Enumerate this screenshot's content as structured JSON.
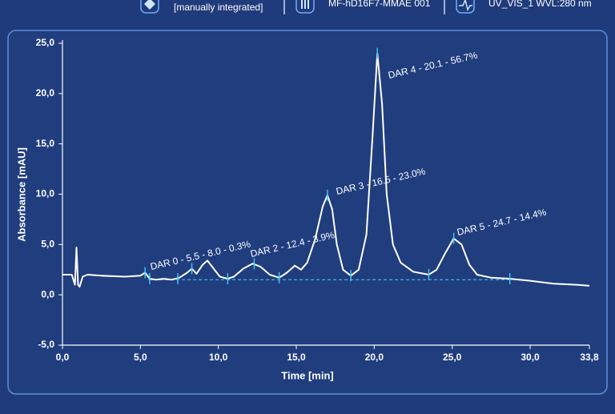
{
  "header": {
    "status": "[manually integrated]",
    "sample": "MF-hD16F7-MMAE 001",
    "channel": "UV_VIS_1  WVL:280 nm"
  },
  "chart_data": {
    "type": "line",
    "xlabel": "Time [min]",
    "ylabel": "Absorbance [mAU]",
    "xlim": [
      0,
      33.8
    ],
    "ylim": [
      -5,
      25
    ],
    "xticks": [
      {
        "value": 0,
        "label": "0,0"
      },
      {
        "value": 5,
        "label": "5,0"
      },
      {
        "value": 10,
        "label": "10,0"
      },
      {
        "value": 15,
        "label": "15,0"
      },
      {
        "value": 20,
        "label": "20,0"
      },
      {
        "value": 25,
        "label": "25,0"
      },
      {
        "value": 30,
        "label": "30,0"
      },
      {
        "value": 33.8,
        "label": "33,8"
      }
    ],
    "yticks": [
      {
        "value": -5,
        "label": "-5,0"
      },
      {
        "value": 0,
        "label": "0,0"
      },
      {
        "value": 5,
        "label": "5,0"
      },
      {
        "value": 10,
        "label": "10,0"
      },
      {
        "value": 15,
        "label": "15,0"
      },
      {
        "value": 20,
        "label": "20,0"
      },
      {
        "value": 25,
        "label": "25,0"
      }
    ],
    "series": [
      {
        "color": "#ffffff",
        "x": [
          0,
          0.6,
          0.8,
          0.9,
          1.0,
          1.1,
          1.3,
          1.6,
          2.5,
          4.0,
          5.0,
          5.3,
          5.6,
          6.0,
          6.5,
          7.0,
          7.5,
          8.0,
          8.3,
          8.6,
          9.0,
          9.3,
          9.7,
          10.1,
          10.6,
          11.0,
          11.6,
          12.2,
          12.7,
          13.3,
          13.9,
          14.4,
          14.9,
          15.3,
          15.7,
          16.2,
          16.7,
          17.0,
          17.3,
          17.6,
          18.0,
          18.5,
          19.0,
          19.5,
          19.9,
          20.2,
          20.5,
          20.8,
          21.2,
          21.7,
          22.5,
          23.5,
          24.0,
          24.5,
          25.1,
          25.6,
          26.1,
          26.6,
          27.5,
          28.7,
          30.0,
          31.5,
          33.0,
          33.8
        ],
        "values": [
          2.0,
          2.0,
          1.0,
          4.7,
          1.0,
          0.8,
          1.8,
          2.0,
          1.9,
          1.8,
          1.9,
          2.2,
          1.6,
          1.5,
          1.6,
          1.5,
          1.7,
          2.2,
          2.6,
          2.1,
          3.0,
          3.4,
          2.6,
          1.8,
          1.6,
          1.8,
          2.6,
          3.1,
          2.8,
          2.0,
          1.7,
          2.2,
          2.9,
          2.5,
          3.2,
          5.5,
          8.8,
          9.9,
          8.5,
          5.0,
          2.5,
          1.9,
          2.5,
          6.0,
          16.0,
          24.0,
          19.0,
          10.0,
          5.0,
          3.2,
          2.3,
          2.0,
          2.5,
          4.0,
          5.6,
          5.0,
          3.0,
          2.0,
          1.7,
          1.6,
          1.4,
          1.1,
          1.0,
          0.9
        ]
      }
    ],
    "baseline": {
      "color": "#3fc4f0",
      "x": [
        5.5,
        28.7
      ],
      "values": [
        1.5,
        1.5
      ]
    },
    "integration_marks": {
      "color": "#3fc4f0",
      "x": [
        5.3,
        5.6,
        7.4,
        8.3,
        10.6,
        12.3,
        13.9,
        17.0,
        18.5,
        20.2,
        23.5,
        25.1,
        28.7
      ],
      "values": [
        2.2,
        1.6,
        1.6,
        2.6,
        1.6,
        3.1,
        1.7,
        9.9,
        1.9,
        24.0,
        2.0,
        5.6,
        1.6
      ]
    },
    "annotations": [
      "DAR 0 - 5.5 - 8.0 - 0.3%",
      "DAR 2 - 12.4 - 3.9%",
      "DAR 3 - 16.5 - 23.0%",
      "DAR 4 - 20.1 - 56.7%",
      "DAR 5 - 24.7 - 14.4%"
    ]
  }
}
